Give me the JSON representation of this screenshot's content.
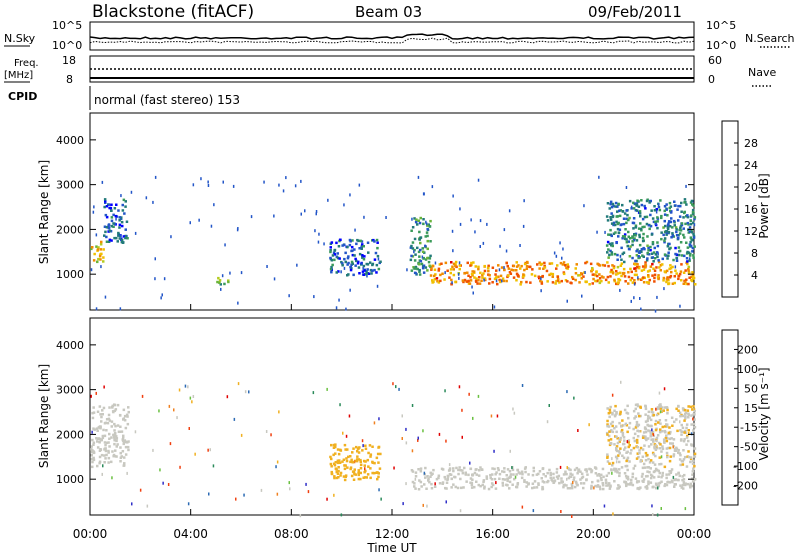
{
  "header": {
    "station": "Blackstone (fitACF)",
    "beam": "Beam 03",
    "date": "09/Feb/2011"
  },
  "top_panels": {
    "nsky_label": "N.Sky",
    "nsky_ticks": [
      "10^5",
      "10^0"
    ],
    "nsearch_label": "N.Search",
    "nsearch_ticks": [
      "10^5",
      "10^0"
    ],
    "freq_label": "Freq.",
    "freq_unit": "[MHz]",
    "freq_ticks": [
      "18",
      "8"
    ],
    "nave_label": "Nave",
    "nave_ticks": [
      "60",
      "0"
    ],
    "cpid_label": "CPID",
    "cpid_value": "normal (fast stereo) 153"
  },
  "x_axis": {
    "label": "Time UT",
    "ticks": [
      "00:00",
      "04:00",
      "08:00",
      "12:00",
      "16:00",
      "20:00",
      "00:00"
    ]
  },
  "colors": {
    "power_scale": [
      "#0000ff",
      "#2255c8",
      "#227a7a",
      "#3a9a5a",
      "#6ab43a",
      "#b4cc20",
      "#f0c000",
      "#f08c00",
      "#f05000",
      "#e00000"
    ],
    "velocity_scale": [
      "#2f2fc8",
      "#2b6ab4",
      "#2a8a5a",
      "#6ac040",
      "#c8c8c0",
      "#c8c8c0",
      "#f0b020",
      "#f08020",
      "#f04010",
      "#e00000"
    ]
  },
  "chart_data": [
    {
      "type": "heatmap",
      "ylabel": "Slant Range [km]",
      "y_ticks": [
        "4000",
        "3000",
        "2000",
        "1000"
      ],
      "ylim": [
        200,
        4600
      ],
      "xlim_hours": [
        0,
        24
      ],
      "colorbar_label": "Power [dB]",
      "colorbar_ticks": [
        "28",
        "24",
        "20",
        "16",
        "12",
        "8",
        "4"
      ],
      "colorbar_range": [
        0,
        32
      ],
      "features": [
        {
          "t": [
            0.0,
            0.5
          ],
          "range": [
            1300,
            1800
          ],
          "level": 20
        },
        {
          "t": [
            0.5,
            1.5
          ],
          "range": [
            1700,
            2700
          ],
          "level": 6
        },
        {
          "t": [
            5.0,
            5.5
          ],
          "range": [
            800,
            1000
          ],
          "level": 14
        },
        {
          "t": [
            9.5,
            11.5
          ],
          "range": [
            1000,
            1800
          ],
          "level": 6
        },
        {
          "t": [
            12.7,
            13.5
          ],
          "range": [
            1000,
            2300
          ],
          "level": 10
        },
        {
          "t": [
            13.5,
            24.0
          ],
          "range": [
            800,
            1300
          ],
          "level": 24
        },
        {
          "t": [
            20.5,
            24.0
          ],
          "range": [
            1300,
            2700
          ],
          "level": 8
        }
      ]
    },
    {
      "type": "heatmap",
      "ylabel": "Slant Range [km]",
      "y_ticks": [
        "4000",
        "3000",
        "2000",
        "1000"
      ],
      "ylim": [
        200,
        4600
      ],
      "xlim_hours": [
        0,
        24
      ],
      "colorbar_label": "Velocity [m s⁻¹]",
      "colorbar_ticks": [
        "200",
        "100",
        "50",
        "15",
        "-15",
        "-50",
        "-100",
        "-200"
      ],
      "colorbar_range": [
        -250,
        250
      ],
      "features": [
        {
          "t": [
            0.0,
            1.5
          ],
          "range": [
            1300,
            2700
          ],
          "velocity": 0
        },
        {
          "t": [
            9.5,
            11.5
          ],
          "range": [
            1000,
            1800
          ],
          "velocity": -80
        },
        {
          "t": [
            12.7,
            24.0
          ],
          "range": [
            800,
            1300
          ],
          "velocity": 0
        },
        {
          "t": [
            20.5,
            24.0
          ],
          "range": [
            1300,
            2700
          ],
          "velocity": -40
        }
      ]
    }
  ]
}
